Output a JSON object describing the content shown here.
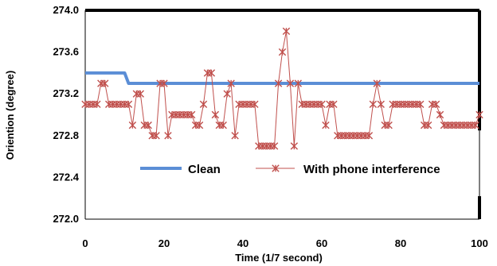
{
  "chart_data": {
    "type": "line",
    "title": "",
    "xlabel": "Time (1/7 second)",
    "ylabel": "Oriention (degree)",
    "xlim": [
      0,
      100
    ],
    "ylim": [
      272.0,
      274.0
    ],
    "x_ticks": [
      "0",
      "20",
      "40",
      "60",
      "80",
      "100"
    ],
    "y_ticks": [
      "272.0",
      "272.4",
      "272.8",
      "273.2",
      "273.6",
      "274.0"
    ],
    "grid": false,
    "legend_position": "center-right",
    "x": [
      0,
      1,
      2,
      3,
      4,
      5,
      6,
      7,
      8,
      9,
      10,
      11,
      12,
      13,
      14,
      15,
      16,
      17,
      18,
      19,
      20,
      21,
      22,
      23,
      24,
      25,
      26,
      27,
      28,
      29,
      30,
      31,
      32,
      33,
      34,
      35,
      36,
      37,
      38,
      39,
      40,
      41,
      42,
      43,
      44,
      45,
      46,
      47,
      48,
      49,
      50,
      51,
      52,
      53,
      54,
      55,
      56,
      57,
      58,
      59,
      60,
      61,
      62,
      63,
      64,
      65,
      66,
      67,
      68,
      69,
      70,
      71,
      72,
      73,
      74,
      75,
      76,
      77,
      78,
      79,
      80,
      81,
      82,
      83,
      84,
      85,
      86,
      87,
      88,
      89,
      90,
      91,
      92,
      93,
      94,
      95,
      96,
      97,
      98,
      99,
      100
    ],
    "series": [
      {
        "name": "Clean",
        "color": "#5b8ed6",
        "marker": "none",
        "values": [
          273.4,
          273.4,
          273.4,
          273.4,
          273.4,
          273.4,
          273.4,
          273.4,
          273.4,
          273.4,
          273.4,
          273.3,
          273.3,
          273.3,
          273.3,
          273.3,
          273.3,
          273.3,
          273.3,
          273.3,
          273.3,
          273.3,
          273.3,
          273.3,
          273.3,
          273.3,
          273.3,
          273.3,
          273.3,
          273.3,
          273.3,
          273.3,
          273.3,
          273.3,
          273.3,
          273.3,
          273.3,
          273.3,
          273.3,
          273.3,
          273.3,
          273.3,
          273.3,
          273.3,
          273.3,
          273.3,
          273.3,
          273.3,
          273.3,
          273.3,
          273.3,
          273.3,
          273.3,
          273.3,
          273.3,
          273.3,
          273.3,
          273.3,
          273.3,
          273.3,
          273.3,
          273.3,
          273.3,
          273.3,
          273.3,
          273.3,
          273.3,
          273.3,
          273.3,
          273.3,
          273.3,
          273.3,
          273.3,
          273.3,
          273.3,
          273.3,
          273.3,
          273.3,
          273.3,
          273.3,
          273.3,
          273.3,
          273.3,
          273.3,
          273.3,
          273.3,
          273.3,
          273.3,
          273.3,
          273.3,
          273.3,
          273.3,
          273.3,
          273.3,
          273.3,
          273.3,
          273.3,
          273.3,
          273.3,
          273.3,
          273.3
        ]
      },
      {
        "name": "With phone interference",
        "color": "#c0504d",
        "marker": "asterisk",
        "values": [
          273.1,
          273.1,
          273.1,
          273.1,
          273.3,
          273.3,
          273.1,
          273.1,
          273.1,
          273.1,
          273.1,
          273.1,
          272.9,
          273.2,
          273.2,
          272.9,
          272.9,
          272.8,
          272.8,
          273.3,
          273.3,
          272.8,
          273.0,
          273.0,
          273.0,
          273.0,
          273.0,
          273.0,
          272.9,
          272.9,
          273.1,
          273.4,
          273.4,
          273.0,
          272.9,
          272.9,
          273.2,
          273.3,
          272.8,
          273.1,
          273.1,
          273.1,
          273.1,
          273.1,
          272.7,
          272.7,
          272.7,
          272.7,
          272.7,
          273.3,
          273.6,
          273.8,
          273.3,
          272.7,
          273.3,
          273.1,
          273.1,
          273.1,
          273.1,
          273.1,
          273.1,
          272.9,
          273.1,
          273.1,
          272.8,
          272.8,
          272.8,
          272.8,
          272.8,
          272.8,
          272.8,
          272.8,
          272.8,
          273.1,
          273.3,
          273.1,
          272.9,
          272.9,
          273.1,
          273.1,
          273.1,
          273.1,
          273.1,
          273.1,
          273.1,
          273.1,
          272.9,
          272.9,
          273.1,
          273.1,
          273.0,
          272.9,
          272.9,
          272.9,
          272.9,
          272.9,
          272.9,
          272.9,
          272.9,
          272.9,
          273.0
        ]
      }
    ]
  }
}
